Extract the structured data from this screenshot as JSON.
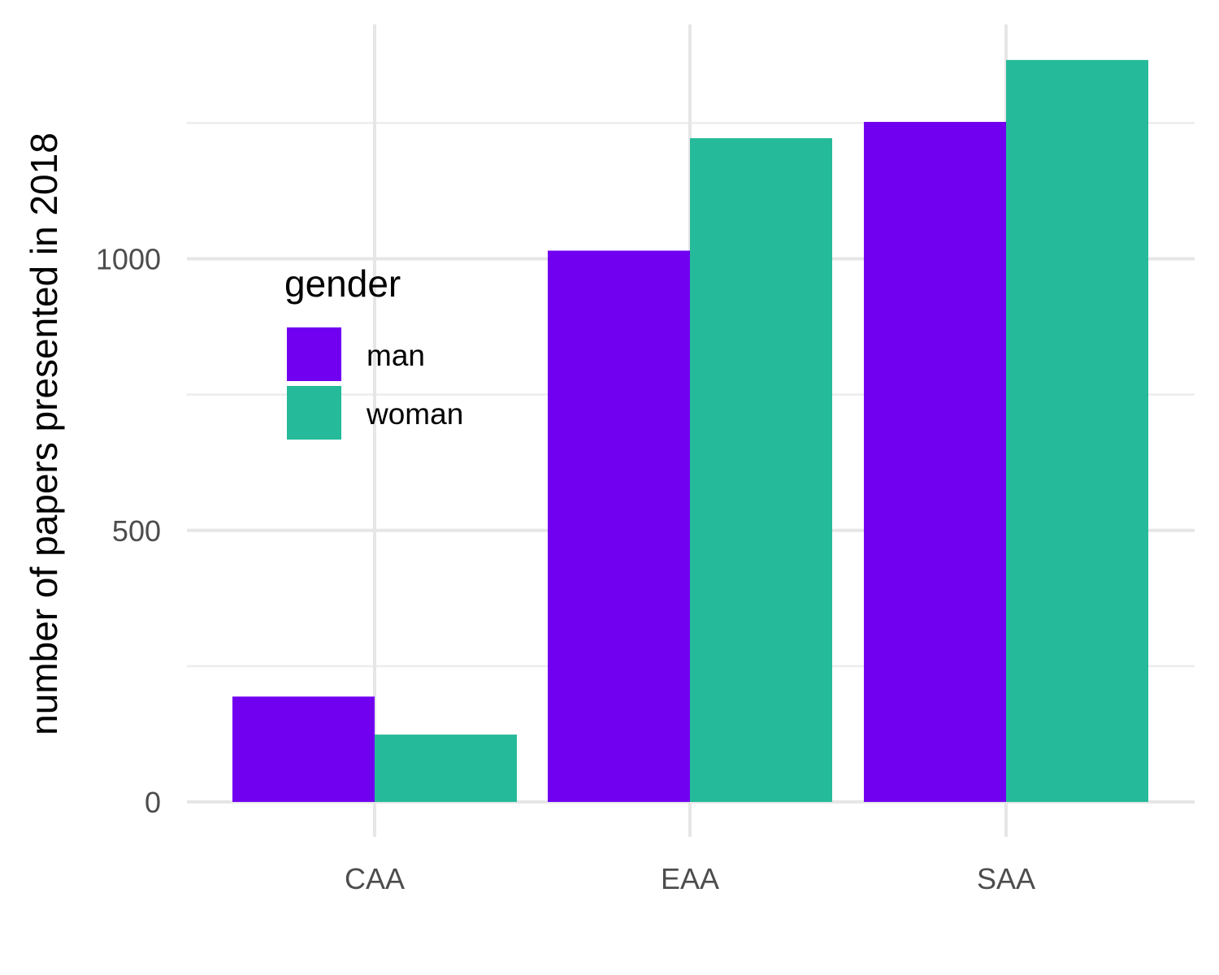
{
  "chart_data": {
    "type": "bar",
    "categories": [
      "CAA",
      "EAA",
      "SAA"
    ],
    "series": [
      {
        "name": "man",
        "values": [
          194,
          1015,
          1252
        ],
        "color": "#7100f0"
      },
      {
        "name": "woman",
        "values": [
          124,
          1222,
          1366
        ],
        "color": "#25ba9a"
      }
    ],
    "title": "",
    "xlabel": "",
    "ylabel": "number of papers presented in 2018",
    "ylim": [
      0,
      1400
    ],
    "yticks": [
      "0",
      "500",
      "1000"
    ],
    "grid": true,
    "legend": {
      "title": "gender",
      "position": "inside-top-left"
    }
  }
}
